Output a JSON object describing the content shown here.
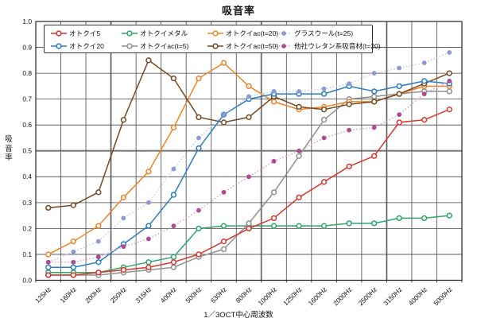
{
  "chart_data": {
    "type": "line",
    "title": "吸音率",
    "ylabel": "吸音率",
    "xlabel": "1／3OCT中心周波数",
    "ylim": [
      0.0,
      1.0
    ],
    "ytick_step": 0.1,
    "ytick_labels": [
      "0.0",
      "0.1",
      "0.2",
      "0.3",
      "0.4",
      "0.5",
      "0.6",
      "0.7",
      "0.8",
      "0.9",
      "1.0"
    ],
    "grid": "both",
    "emphasis_h_value": 0.5,
    "emphasis_v_boundaries": [
      3,
      9,
      14
    ],
    "legend_position": "top-inside",
    "categories": [
      "125Hz",
      "160Hz",
      "200Hz",
      "250Hz",
      "315Hz",
      "400Hz",
      "500Hz",
      "630Hz",
      "800Hz",
      "1000Hz",
      "1250Hz",
      "1600Hz",
      "2000Hz",
      "2500Hz",
      "3150Hz",
      "4000Hz",
      "5000Hz"
    ],
    "series": [
      {
        "name": "オトクイ5",
        "color": "#d9352e",
        "line_color": "#d9352e",
        "marker": "open",
        "line": "solid",
        "values": [
          0.02,
          0.02,
          0.03,
          0.04,
          0.05,
          0.07,
          0.1,
          0.15,
          0.2,
          0.24,
          0.32,
          0.38,
          0.44,
          0.48,
          0.61,
          0.62,
          0.66
        ]
      },
      {
        "name": "オトクイ20",
        "color": "#2a7cc4",
        "line_color": "#2a7cc4",
        "marker": "open",
        "line": "solid",
        "values": [
          0.05,
          0.05,
          0.07,
          0.14,
          0.21,
          0.33,
          0.51,
          0.64,
          0.7,
          0.72,
          0.72,
          0.72,
          0.75,
          0.73,
          0.75,
          0.77,
          0.76
        ]
      },
      {
        "name": "オトクイメタル",
        "color": "#2fa566",
        "line_color": "#2fa566",
        "marker": "open",
        "line": "solid",
        "values": [
          0.03,
          0.03,
          0.03,
          0.05,
          0.07,
          0.09,
          0.2,
          0.21,
          0.21,
          0.21,
          0.21,
          0.21,
          0.22,
          0.22,
          0.24,
          0.24,
          0.25
        ]
      },
      {
        "name": "オトクイac(t=5)",
        "color": "#8f8f8f",
        "line_color": "#8f8f8f",
        "marker": "open",
        "line": "solid",
        "values": [
          0.02,
          0.02,
          0.02,
          0.03,
          0.04,
          0.05,
          0.09,
          0.12,
          0.22,
          0.34,
          0.48,
          0.62,
          0.7,
          0.71,
          0.72,
          0.73,
          0.73
        ]
      },
      {
        "name": "オトクイac(t=20)",
        "color": "#ef8426",
        "line_color": "#ef8426",
        "marker": "open",
        "line": "solid",
        "values": [
          0.1,
          0.15,
          0.21,
          0.32,
          0.42,
          0.59,
          0.78,
          0.84,
          0.75,
          0.69,
          0.66,
          0.67,
          0.69,
          0.69,
          0.72,
          0.75,
          0.75
        ]
      },
      {
        "name": "オトクイac(t=50)",
        "color": "#754a1f",
        "line_color": "#754a1f",
        "marker": "open",
        "line": "solid",
        "values": [
          0.28,
          0.29,
          0.34,
          0.62,
          0.85,
          0.78,
          0.63,
          0.61,
          0.63,
          0.71,
          0.67,
          0.66,
          0.68,
          0.69,
          0.72,
          0.76,
          0.8
        ]
      },
      {
        "name": "グラスウール(t=25)",
        "color": "#8e99d2",
        "line_color": "#c5cae6",
        "marker": "filled",
        "line": "dotted",
        "values": [
          0.07,
          0.11,
          0.15,
          0.24,
          0.3,
          0.43,
          0.55,
          0.64,
          0.71,
          0.73,
          0.73,
          0.74,
          0.76,
          0.8,
          0.82,
          0.84,
          0.88
        ]
      },
      {
        "name": "他社ウレタン系吸音材(t=20)",
        "color": "#ae4a91",
        "line_color": "#e09bcb",
        "marker": "filled",
        "line": "dotted",
        "values": [
          0.07,
          0.07,
          0.09,
          0.13,
          0.16,
          0.21,
          0.27,
          0.34,
          0.4,
          0.46,
          0.5,
          0.55,
          0.58,
          0.59,
          0.64,
          0.72,
          0.77
        ]
      }
    ]
  }
}
